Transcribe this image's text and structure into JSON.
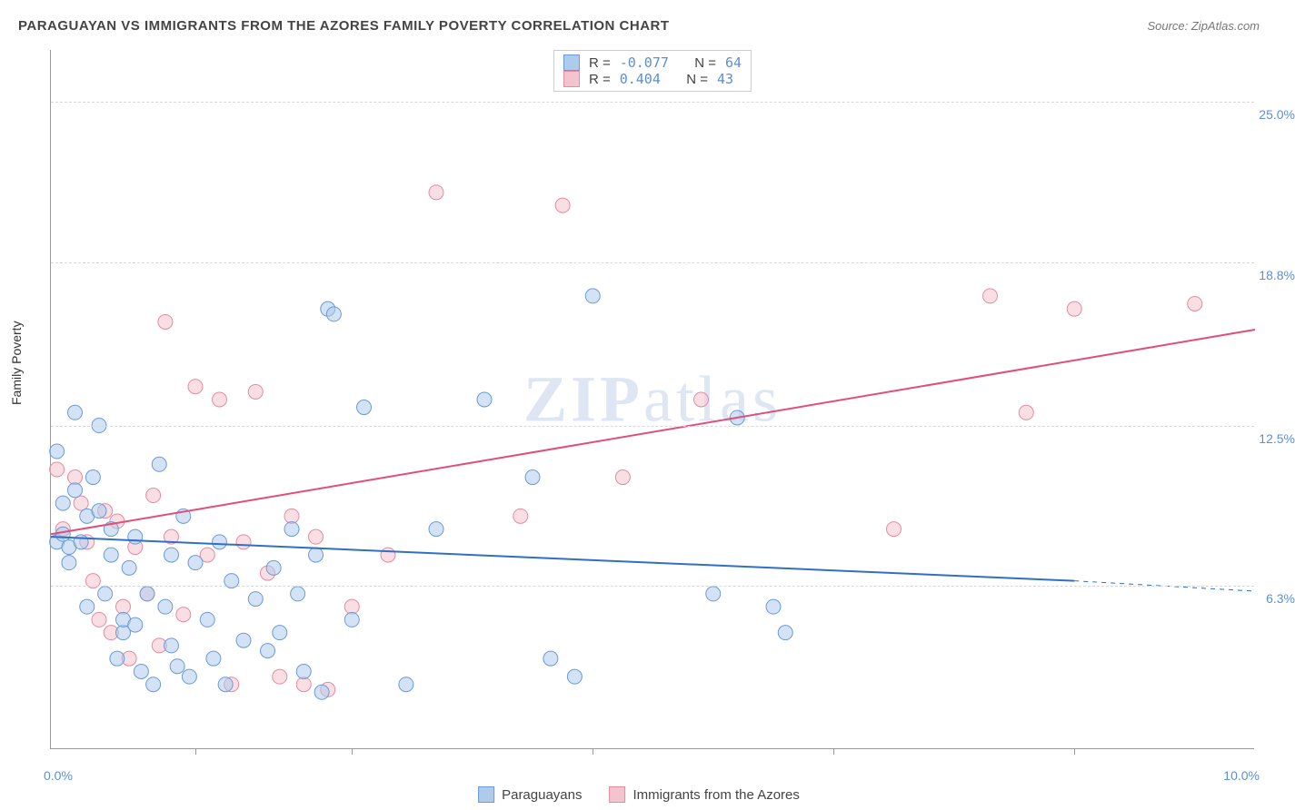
{
  "title": "PARAGUAYAN VS IMMIGRANTS FROM THE AZORES FAMILY POVERTY CORRELATION CHART",
  "source": "Source: ZipAtlas.com",
  "y_axis_label": "Family Poverty",
  "watermark": "ZIPatlas",
  "plot": {
    "type": "scatter",
    "xlim": [
      0,
      10
    ],
    "ylim": [
      0,
      27
    ],
    "x_min_label": "0.0%",
    "x_max_label": "10.0%",
    "x_tick_positions": [
      1.2,
      2.5,
      4.5,
      6.5,
      8.5
    ],
    "y_gridlines": [
      {
        "value": 6.3,
        "label": "6.3%"
      },
      {
        "value": 12.5,
        "label": "12.5%"
      },
      {
        "value": 18.8,
        "label": "18.8%"
      },
      {
        "value": 25.0,
        "label": "25.0%"
      }
    ],
    "grid_color": "#d8d8d8",
    "axis_label_color": "#5b8fd6",
    "marker_radius": 8
  },
  "series_a": {
    "name": "Paraguayans",
    "fill": "#aecbeb",
    "stroke": "#6a9bd8",
    "fill_opacity": 0.55,
    "R": "-0.077",
    "N": "64",
    "trend": {
      "x1": 0,
      "y1": 8.2,
      "x2": 8.5,
      "y2": 6.5,
      "x2_dash_end": 10,
      "y2_dash_end": 6.1,
      "color": "#2f6fc4",
      "width": 2
    },
    "points": [
      [
        0.05,
        11.5
      ],
      [
        0.05,
        8.0
      ],
      [
        0.1,
        9.5
      ],
      [
        0.1,
        8.3
      ],
      [
        0.15,
        7.8
      ],
      [
        0.15,
        7.2
      ],
      [
        0.2,
        10.0
      ],
      [
        0.2,
        13.0
      ],
      [
        0.25,
        8.0
      ],
      [
        0.3,
        9.0
      ],
      [
        0.3,
        5.5
      ],
      [
        0.35,
        10.5
      ],
      [
        0.4,
        12.5
      ],
      [
        0.4,
        9.2
      ],
      [
        0.45,
        6.0
      ],
      [
        0.5,
        7.5
      ],
      [
        0.5,
        8.5
      ],
      [
        0.55,
        3.5
      ],
      [
        0.6,
        4.5
      ],
      [
        0.6,
        5.0
      ],
      [
        0.65,
        7.0
      ],
      [
        0.7,
        8.2
      ],
      [
        0.7,
        4.8
      ],
      [
        0.75,
        3.0
      ],
      [
        0.8,
        6.0
      ],
      [
        0.85,
        2.5
      ],
      [
        0.9,
        11.0
      ],
      [
        0.95,
        5.5
      ],
      [
        1.0,
        7.5
      ],
      [
        1.0,
        4.0
      ],
      [
        1.05,
        3.2
      ],
      [
        1.1,
        9.0
      ],
      [
        1.15,
        2.8
      ],
      [
        1.2,
        7.2
      ],
      [
        1.3,
        5.0
      ],
      [
        1.35,
        3.5
      ],
      [
        1.4,
        8.0
      ],
      [
        1.45,
        2.5
      ],
      [
        1.5,
        6.5
      ],
      [
        1.6,
        4.2
      ],
      [
        1.7,
        5.8
      ],
      [
        1.8,
        3.8
      ],
      [
        1.85,
        7.0
      ],
      [
        1.9,
        4.5
      ],
      [
        2.0,
        8.5
      ],
      [
        2.05,
        6.0
      ],
      [
        2.1,
        3.0
      ],
      [
        2.2,
        7.5
      ],
      [
        2.25,
        2.2
      ],
      [
        2.3,
        17.0
      ],
      [
        2.35,
        16.8
      ],
      [
        2.5,
        5.0
      ],
      [
        2.6,
        13.2
      ],
      [
        2.95,
        2.5
      ],
      [
        3.2,
        8.5
      ],
      [
        3.6,
        13.5
      ],
      [
        4.0,
        10.5
      ],
      [
        4.15,
        3.5
      ],
      [
        4.35,
        2.8
      ],
      [
        4.5,
        17.5
      ],
      [
        5.5,
        6.0
      ],
      [
        5.7,
        12.8
      ],
      [
        6.1,
        4.5
      ],
      [
        6.0,
        5.5
      ]
    ]
  },
  "series_b": {
    "name": "Immigrants from the Azores",
    "fill": "#f4c4ce",
    "stroke": "#e48ba0",
    "fill_opacity": 0.55,
    "R": "0.404",
    "N": "43",
    "trend": {
      "x1": 0,
      "y1": 8.3,
      "x2": 10,
      "y2": 16.2,
      "color": "#e04f77",
      "width": 2
    },
    "points": [
      [
        0.05,
        10.8
      ],
      [
        0.1,
        8.5
      ],
      [
        0.2,
        10.5
      ],
      [
        0.25,
        9.5
      ],
      [
        0.3,
        8.0
      ],
      [
        0.35,
        6.5
      ],
      [
        0.4,
        5.0
      ],
      [
        0.45,
        9.2
      ],
      [
        0.5,
        4.5
      ],
      [
        0.55,
        8.8
      ],
      [
        0.6,
        5.5
      ],
      [
        0.65,
        3.5
      ],
      [
        0.7,
        7.8
      ],
      [
        0.8,
        6.0
      ],
      [
        0.85,
        9.8
      ],
      [
        0.9,
        4.0
      ],
      [
        0.95,
        16.5
      ],
      [
        1.0,
        8.2
      ],
      [
        1.1,
        5.2
      ],
      [
        1.2,
        14.0
      ],
      [
        1.3,
        7.5
      ],
      [
        1.4,
        13.5
      ],
      [
        1.5,
        2.5
      ],
      [
        1.6,
        8.0
      ],
      [
        1.7,
        13.8
      ],
      [
        1.8,
        6.8
      ],
      [
        1.9,
        2.8
      ],
      [
        2.0,
        9.0
      ],
      [
        2.1,
        2.5
      ],
      [
        2.2,
        8.2
      ],
      [
        2.3,
        2.3
      ],
      [
        2.5,
        5.5
      ],
      [
        2.8,
        7.5
      ],
      [
        3.2,
        21.5
      ],
      [
        3.9,
        9.0
      ],
      [
        4.25,
        21.0
      ],
      [
        4.75,
        10.5
      ],
      [
        5.4,
        13.5
      ],
      [
        7.0,
        8.5
      ],
      [
        7.8,
        17.5
      ],
      [
        8.1,
        13.0
      ],
      [
        8.5,
        17.0
      ],
      [
        9.5,
        17.2
      ]
    ]
  }
}
